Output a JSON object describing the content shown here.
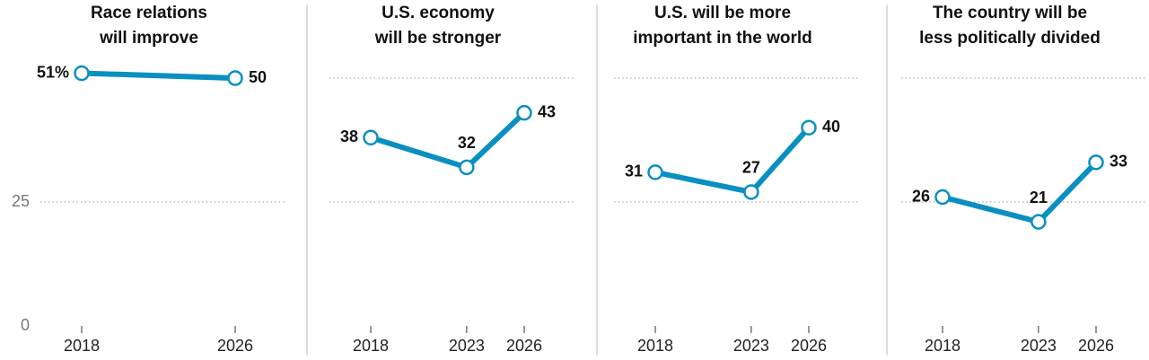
{
  "chart_data": [
    {
      "type": "line",
      "title": [
        "Race relations",
        "will improve"
      ],
      "x": [
        2018,
        2026
      ],
      "values": [
        51,
        50
      ],
      "value_labels": [
        "51%",
        "50"
      ],
      "color": "#0a8fc1",
      "xlim": [
        2018,
        2026
      ],
      "xticks": [
        2018,
        2026
      ],
      "ylim": [
        0,
        52
      ],
      "yticks": [
        0,
        25
      ],
      "ytick_labels": true
    },
    {
      "type": "line",
      "title": [
        "U.S. economy",
        "will be stronger"
      ],
      "x": [
        2018,
        2023,
        2026
      ],
      "values": [
        38,
        32,
        43
      ],
      "color": "#0a8fc1",
      "xlim": [
        2018,
        2026
      ],
      "xticks": [
        2018,
        2023,
        2026
      ],
      "ylim": [
        0,
        52
      ],
      "yticks": [
        25,
        50
      ],
      "ytick_labels": false
    },
    {
      "type": "line",
      "title": [
        "U.S. will be more",
        "important in the world"
      ],
      "x": [
        2018,
        2023,
        2026
      ],
      "values": [
        31,
        27,
        40
      ],
      "color": "#0a8fc1",
      "xlim": [
        2018,
        2026
      ],
      "xticks": [
        2018,
        2023,
        2026
      ],
      "ylim": [
        0,
        52
      ],
      "yticks": [
        25,
        50
      ],
      "ytick_labels": false
    },
    {
      "type": "line",
      "title": [
        "The country will be",
        "less politically divided"
      ],
      "x": [
        2018,
        2023,
        2026
      ],
      "values": [
        26,
        21,
        33
      ],
      "color": "#0a8fc1",
      "xlim": [
        2018,
        2026
      ],
      "xticks": [
        2018,
        2023,
        2026
      ],
      "ylim": [
        0,
        52
      ],
      "yticks": [
        25,
        50
      ],
      "ytick_labels": false
    }
  ]
}
